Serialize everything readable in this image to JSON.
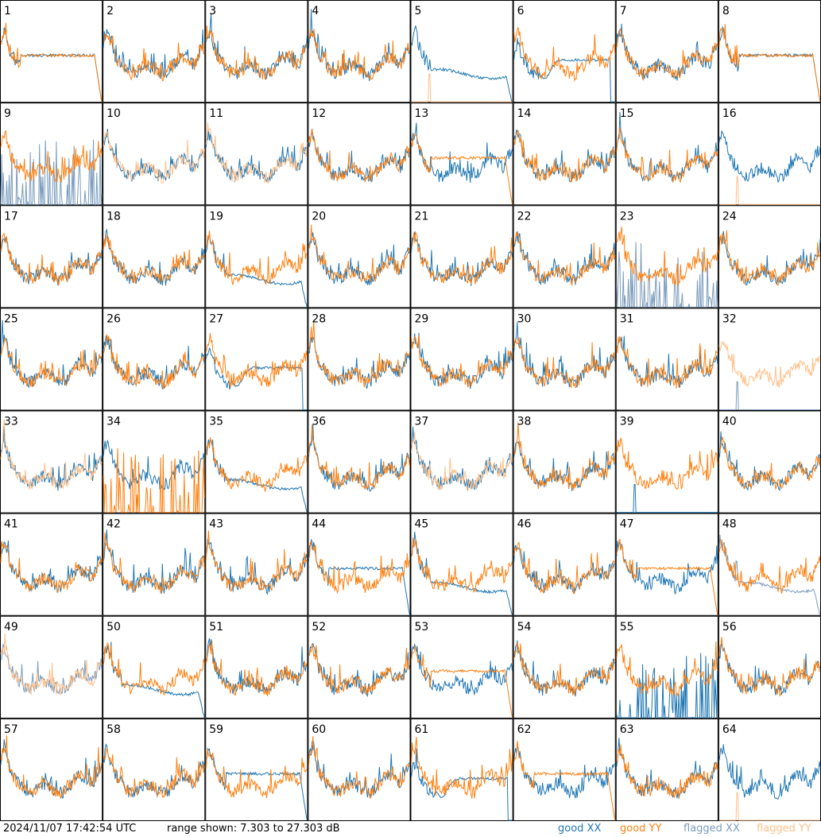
{
  "chart_data": {
    "type": "line",
    "title": "",
    "xlabel": "",
    "ylabel": "",
    "ylim": [
      7.303,
      27.303
    ],
    "grid": {
      "rows": 8,
      "cols": 8
    },
    "panels": [
      {
        "id": "1",
        "xx": "drop",
        "yy": "drop",
        "xxf": false,
        "yyf": false
      },
      {
        "id": "2",
        "xx": "normal",
        "yy": "normal",
        "xxf": false,
        "yyf": false
      },
      {
        "id": "3",
        "xx": "normal",
        "yy": "normal",
        "xxf": false,
        "yyf": false
      },
      {
        "id": "4",
        "xx": "normal",
        "yy": "normal",
        "xxf": false,
        "yyf": false
      },
      {
        "id": "5",
        "xx": "low",
        "yy": "spike",
        "xxf": false,
        "yyf": true
      },
      {
        "id": "6",
        "xx": "dip",
        "yy": "normal",
        "xxf": false,
        "yyf": false
      },
      {
        "id": "7",
        "xx": "normal",
        "yy": "normal",
        "xxf": false,
        "yyf": false
      },
      {
        "id": "8",
        "xx": "drop",
        "yy": "drop",
        "xxf": false,
        "yyf": false
      },
      {
        "id": "9",
        "xx": "bars",
        "yy": "normal",
        "xxf": true,
        "yyf": false
      },
      {
        "id": "10",
        "xx": "normal",
        "yy": "normal",
        "xxf": false,
        "yyf": true
      },
      {
        "id": "11",
        "xx": "normal",
        "yy": "normal",
        "xxf": false,
        "yyf": true
      },
      {
        "id": "12",
        "xx": "normal",
        "yy": "normal",
        "xxf": false,
        "yyf": false
      },
      {
        "id": "13",
        "xx": "normal",
        "yy": "drop",
        "xxf": false,
        "yyf": false
      },
      {
        "id": "14",
        "xx": "normal",
        "yy": "normal",
        "xxf": false,
        "yyf": false
      },
      {
        "id": "15",
        "xx": "normal",
        "yy": "normal",
        "xxf": false,
        "yyf": false
      },
      {
        "id": "16",
        "xx": "normal",
        "yy": "spike",
        "xxf": false,
        "yyf": true
      },
      {
        "id": "17",
        "xx": "normal",
        "yy": "normal",
        "xxf": false,
        "yyf": false
      },
      {
        "id": "18",
        "xx": "normal",
        "yy": "normal",
        "xxf": false,
        "yyf": false
      },
      {
        "id": "19",
        "xx": "low",
        "yy": "normal",
        "xxf": false,
        "yyf": false
      },
      {
        "id": "20",
        "xx": "normal",
        "yy": "normal",
        "xxf": false,
        "yyf": false
      },
      {
        "id": "21",
        "xx": "normal",
        "yy": "normal",
        "xxf": false,
        "yyf": false
      },
      {
        "id": "22",
        "xx": "normal",
        "yy": "normal",
        "xxf": false,
        "yyf": false
      },
      {
        "id": "23",
        "xx": "bars",
        "yy": "normal",
        "xxf": true,
        "yyf": false
      },
      {
        "id": "24",
        "xx": "normal",
        "yy": "normal",
        "xxf": false,
        "yyf": false
      },
      {
        "id": "25",
        "xx": "normal",
        "yy": "normal",
        "xxf": false,
        "yyf": false
      },
      {
        "id": "26",
        "xx": "normal",
        "yy": "normal",
        "xxf": false,
        "yyf": false
      },
      {
        "id": "27",
        "xx": "dip",
        "yy": "normal",
        "xxf": false,
        "yyf": false
      },
      {
        "id": "28",
        "xx": "normal",
        "yy": "normal",
        "xxf": false,
        "yyf": false
      },
      {
        "id": "29",
        "xx": "normal",
        "yy": "normal",
        "xxf": false,
        "yyf": false
      },
      {
        "id": "30",
        "xx": "normal",
        "yy": "normal",
        "xxf": false,
        "yyf": false
      },
      {
        "id": "31",
        "xx": "normal",
        "yy": "normal",
        "xxf": false,
        "yyf": false
      },
      {
        "id": "32",
        "xx": "spike",
        "yy": "normal",
        "xxf": true,
        "yyf": true
      },
      {
        "id": "33",
        "xx": "normal",
        "yy": "normal",
        "xxf": false,
        "yyf": true
      },
      {
        "id": "34",
        "xx": "normal",
        "yy": "bars",
        "xxf": false,
        "yyf": false
      },
      {
        "id": "35",
        "xx": "low",
        "yy": "normal",
        "xxf": false,
        "yyf": false
      },
      {
        "id": "36",
        "xx": "normal",
        "yy": "normal",
        "xxf": false,
        "yyf": false
      },
      {
        "id": "37",
        "xx": "normal",
        "yy": "normal",
        "xxf": false,
        "yyf": true
      },
      {
        "id": "38",
        "xx": "normal",
        "yy": "normal",
        "xxf": false,
        "yyf": false
      },
      {
        "id": "39",
        "xx": "spike",
        "yy": "normal",
        "xxf": false,
        "yyf": false
      },
      {
        "id": "40",
        "xx": "normal",
        "yy": "normal",
        "xxf": false,
        "yyf": false
      },
      {
        "id": "41",
        "xx": "normal",
        "yy": "normal",
        "xxf": false,
        "yyf": false
      },
      {
        "id": "42",
        "xx": "normal",
        "yy": "normal",
        "xxf": false,
        "yyf": false
      },
      {
        "id": "43",
        "xx": "normal",
        "yy": "normal",
        "xxf": false,
        "yyf": false
      },
      {
        "id": "44",
        "xx": "drop",
        "yy": "normal",
        "xxf": false,
        "yyf": false
      },
      {
        "id": "45",
        "xx": "low",
        "yy": "normal",
        "xxf": false,
        "yyf": false
      },
      {
        "id": "46",
        "xx": "normal",
        "yy": "normal",
        "xxf": false,
        "yyf": false
      },
      {
        "id": "47",
        "xx": "normal",
        "yy": "drop",
        "xxf": false,
        "yyf": false
      },
      {
        "id": "48",
        "xx": "low",
        "yy": "normal",
        "xxf": true,
        "yyf": false
      },
      {
        "id": "49",
        "xx": "normal",
        "yy": "normal",
        "xxf": true,
        "yyf": true
      },
      {
        "id": "50",
        "xx": "low",
        "yy": "normal",
        "xxf": false,
        "yyf": false
      },
      {
        "id": "51",
        "xx": "normal",
        "yy": "normal",
        "xxf": false,
        "yyf": false
      },
      {
        "id": "52",
        "xx": "normal",
        "yy": "normal",
        "xxf": false,
        "yyf": false
      },
      {
        "id": "53",
        "xx": "normal",
        "yy": "drop",
        "xxf": false,
        "yyf": false
      },
      {
        "id": "54",
        "xx": "normal",
        "yy": "normal",
        "xxf": false,
        "yyf": false
      },
      {
        "id": "55",
        "xx": "bars",
        "yy": "normal",
        "xxf": false,
        "yyf": false
      },
      {
        "id": "56",
        "xx": "normal",
        "yy": "normal",
        "xxf": false,
        "yyf": false
      },
      {
        "id": "57",
        "xx": "normal",
        "yy": "normal",
        "xxf": false,
        "yyf": false
      },
      {
        "id": "58",
        "xx": "normal",
        "yy": "normal",
        "xxf": false,
        "yyf": false
      },
      {
        "id": "59",
        "xx": "drop",
        "yy": "normal",
        "xxf": false,
        "yyf": false
      },
      {
        "id": "60",
        "xx": "normal",
        "yy": "normal",
        "xxf": false,
        "yyf": false
      },
      {
        "id": "61",
        "xx": "dip",
        "yy": "normal",
        "xxf": false,
        "yyf": false
      },
      {
        "id": "62",
        "xx": "normal",
        "yy": "drop",
        "xxf": false,
        "yyf": false
      },
      {
        "id": "63",
        "xx": "normal",
        "yy": "normal",
        "xxf": false,
        "yyf": false
      },
      {
        "id": "64",
        "xx": "normal",
        "yy": "spike",
        "xxf": false,
        "yyf": true
      }
    ]
  },
  "footer": {
    "timestamp": "2024/11/07 17:42:54 UTC",
    "range": "range shown: 7.303 to 27.303 dB",
    "legend": {
      "good_xx": "good XX",
      "good_yy": "good YY",
      "flagged_xx": "flagged XX",
      "flagged_yy": "flagged YY"
    }
  },
  "colors": {
    "good_xx": "#1f77b4",
    "good_yy": "#ff7f0e",
    "flagged_xx": "#7a9cbd",
    "flagged_yy": "#ffc08a"
  }
}
